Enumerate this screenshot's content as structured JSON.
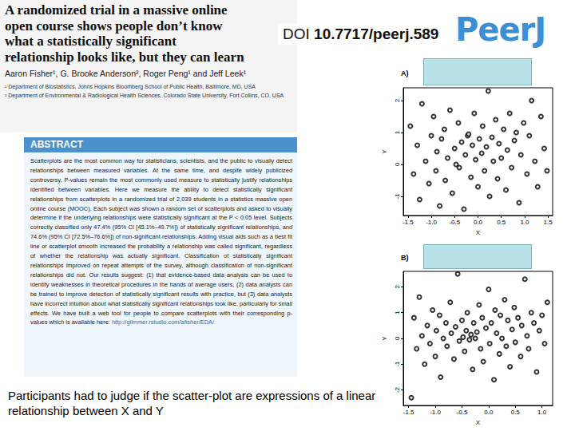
{
  "paper": {
    "title_lines": [
      "A randomized trial in a massive online",
      "open course shows people don’t know",
      "what a statistically significant",
      "relationship looks like, but they can learn"
    ],
    "authors": "Aaron Fisher¹, G. Brooke Anderson², Roger Peng¹ and Jeff Leek¹",
    "affiliations": [
      "¹ Department of Biostatistics, Johns Hopkins Bloomberg School of Public Health, Baltimore, MD, USA",
      "² Department of Environmental & Radiological Health Sciences, Colorado State University, Fort Collins, CO, USA"
    ]
  },
  "doi": {
    "label": "DOI",
    "id": "10.7717/peerj.589"
  },
  "journal": "PeerJ",
  "abstract": {
    "heading": "ABSTRACT",
    "text": "Scatterplots are the most common way for statisticians, scientists, and the public to visually detect relationships between measured variables. At the same time, and despite widely publicized controversy, P-values remain the most commonly used measure to statistically justify relationships identified between variables. Here we measure the ability to detect statistically significant relationships from scatterplots in a randomized trial of 2,039 students in a statistics massive open online course (MOOC). Each subject was shown a random set of scatterplots and asked to visually determine if the underlying relationships were statistically significant at the P < 0.05 level. Subjects correctly classified only 47.4% (95% CI [45.1%–49.7%]) of statistically significant relationships, and 74.6% (95% CI [72.5%–76.6%]) of non-significant relationships. Adding visual aids such as a best fit line or scatterplot smooth increased the probability a relationship was called significant, regardless of whether the relationship was actually significant. Classification of statistically significant relationships improved on repeat attempts of the survey, although classification of non-significant relationships did not. Our results suggest: (1) that evidence-based data analysis can be used to identify weaknesses in theoretical procedures in the hands of average users, (2) data analysts can be trained to improve detection of statistically significant results with practice, but (3) data analysts have incorrect intuition about what statistically significant relationships look like, particularly for small effects. We have built a web tool for people to compare scatterplots with their corresponding p-values which is available here:",
    "url": "http://glimmer.rstudio.com/afisher/EDA/."
  },
  "caption": "Participants had to judge if the scatter-plot are expressions of a linear relationship between X and Y",
  "chart_data": [
    {
      "type": "scatter",
      "title": "A)",
      "x_label": "X",
      "y_label": "Y",
      "marker": "open_circle",
      "color": "#000000",
      "grid": false,
      "xlim": [
        -1.6,
        1.6
      ],
      "ylim": [
        -1.6,
        2.4
      ],
      "xticks": [
        {
          "value": -1.5,
          "label": "-1.5"
        },
        {
          "value": -1,
          "label": "-1.0"
        },
        {
          "value": -0.5,
          "label": "-0.5"
        },
        {
          "value": 0,
          "label": "0.0"
        },
        {
          "value": 0.5,
          "label": "0.5"
        },
        {
          "value": 1,
          "label": "1.0"
        },
        {
          "value": 1.5,
          "label": "1.5"
        }
      ],
      "yticks": [
        -1,
        0,
        1,
        2
      ],
      "x": [
        -1.45,
        -1.38,
        -1.3,
        -1.25,
        -1.2,
        -1.12,
        -1.05,
        -1.0,
        -0.95,
        -0.9,
        -0.88,
        -0.82,
        -0.78,
        -0.72,
        -0.7,
        -0.65,
        -0.6,
        -0.55,
        -0.5,
        -0.47,
        -0.42,
        -0.4,
        -0.35,
        -0.3,
        -0.27,
        -0.22,
        -0.2,
        -0.15,
        -0.12,
        -0.08,
        -0.05,
        0.0,
        0.03,
        0.08,
        0.1,
        0.14,
        0.18,
        0.22,
        0.25,
        0.3,
        0.33,
        0.38,
        0.42,
        0.45,
        0.5,
        0.55,
        0.6,
        0.63,
        0.68,
        0.72,
        0.78,
        0.82,
        0.88,
        0.92,
        0.98,
        1.05,
        1.1,
        1.15,
        1.22,
        1.28,
        1.35,
        1.42,
        1.48
      ],
      "values": [
        1.2,
        -0.3,
        0.6,
        -1.1,
        1.9,
        0.1,
        -0.6,
        0.9,
        1.5,
        -0.2,
        0.4,
        -1.3,
        0.8,
        1.1,
        -0.5,
        0.2,
        1.7,
        -0.9,
        0.5,
        0.0,
        1.3,
        -0.1,
        0.7,
        -1.4,
        0.3,
        0.9,
        0.95,
        -0.4,
        0.6,
        1.6,
        0.15,
        -0.7,
        0.8,
        0.35,
        1.2,
        -0.2,
        0.55,
        2.3,
        -1.0,
        0.85,
        0.1,
        1.4,
        -0.45,
        0.65,
        0.2,
        1.1,
        -0.8,
        0.45,
        1.6,
        -0.1,
        0.75,
        1.0,
        -1.2,
        0.3,
        1.3,
        -0.3,
        0.9,
        2.0,
        0.1,
        -0.7,
        1.5,
        0.5,
        -0.2
      ]
    },
    {
      "type": "scatter",
      "title": "B)",
      "x_label": "X",
      "y_label": "Y",
      "marker": "open_circle",
      "color": "#000000",
      "grid": false,
      "xlim": [
        -1.6,
        1.2
      ],
      "ylim": [
        -2.6,
        2.6
      ],
      "xticks": [
        {
          "value": -1.5,
          "label": "-1.5"
        },
        {
          "value": -1,
          "label": "-1.0"
        },
        {
          "value": -0.5,
          "label": "-0.5"
        },
        {
          "value": 0,
          "label": "0.0"
        },
        {
          "value": 0.5,
          "label": "0.5"
        },
        {
          "value": 1,
          "label": "1.0"
        }
      ],
      "yticks": [
        -2,
        -1,
        0,
        1,
        2
      ],
      "x": [
        -1.45,
        -1.4,
        -1.35,
        -1.3,
        -1.25,
        -1.2,
        -1.15,
        -1.1,
        -1.05,
        -1.0,
        -0.98,
        -0.92,
        -0.9,
        -0.85,
        -0.8,
        -0.78,
        -0.72,
        -0.7,
        -0.65,
        -0.62,
        -0.58,
        -0.55,
        -0.5,
        -0.48,
        -0.45,
        -0.42,
        -0.4,
        -0.36,
        -0.33,
        -0.3,
        -0.28,
        -0.25,
        -0.22,
        -0.18,
        -0.15,
        -0.12,
        -0.1,
        -0.05,
        0.0,
        0.02,
        0.05,
        0.1,
        0.12,
        0.15,
        0.2,
        0.22,
        0.25,
        0.3,
        0.33,
        0.36,
        0.4,
        0.44,
        0.48,
        0.5,
        0.55,
        0.6,
        0.62,
        0.68,
        0.72,
        0.75,
        0.8,
        0.85,
        0.9,
        0.95,
        1.0,
        1.05,
        1.1
      ],
      "values": [
        -2.3,
        0.8,
        -0.4,
        1.6,
        0.1,
        -1.0,
        0.5,
        -0.2,
        1.1,
        -0.7,
        0.3,
        0.9,
        -1.5,
        0.0,
        0.6,
        -0.3,
        1.4,
        0.2,
        -0.8,
        0.45,
        2.5,
        -0.1,
        0.7,
        0.05,
        -0.5,
        0.3,
        1.0,
        -0.05,
        0.15,
        -1.2,
        0.6,
        0.0,
        0.25,
        1.3,
        -0.4,
        0.8,
        -0.9,
        0.4,
        1.9,
        -0.2,
        0.6,
        -1.6,
        1.1,
        0.2,
        -0.6,
        0.9,
        0.0,
        1.5,
        -0.3,
        0.7,
        -1.1,
        0.35,
        1.2,
        -0.15,
        0.8,
        -0.7,
        0.5,
        2.3,
        0.1,
        -0.4,
        1.0,
        0.6,
        -1.3,
        0.3,
        0.9,
        -0.2,
        1.4
      ]
    }
  ]
}
